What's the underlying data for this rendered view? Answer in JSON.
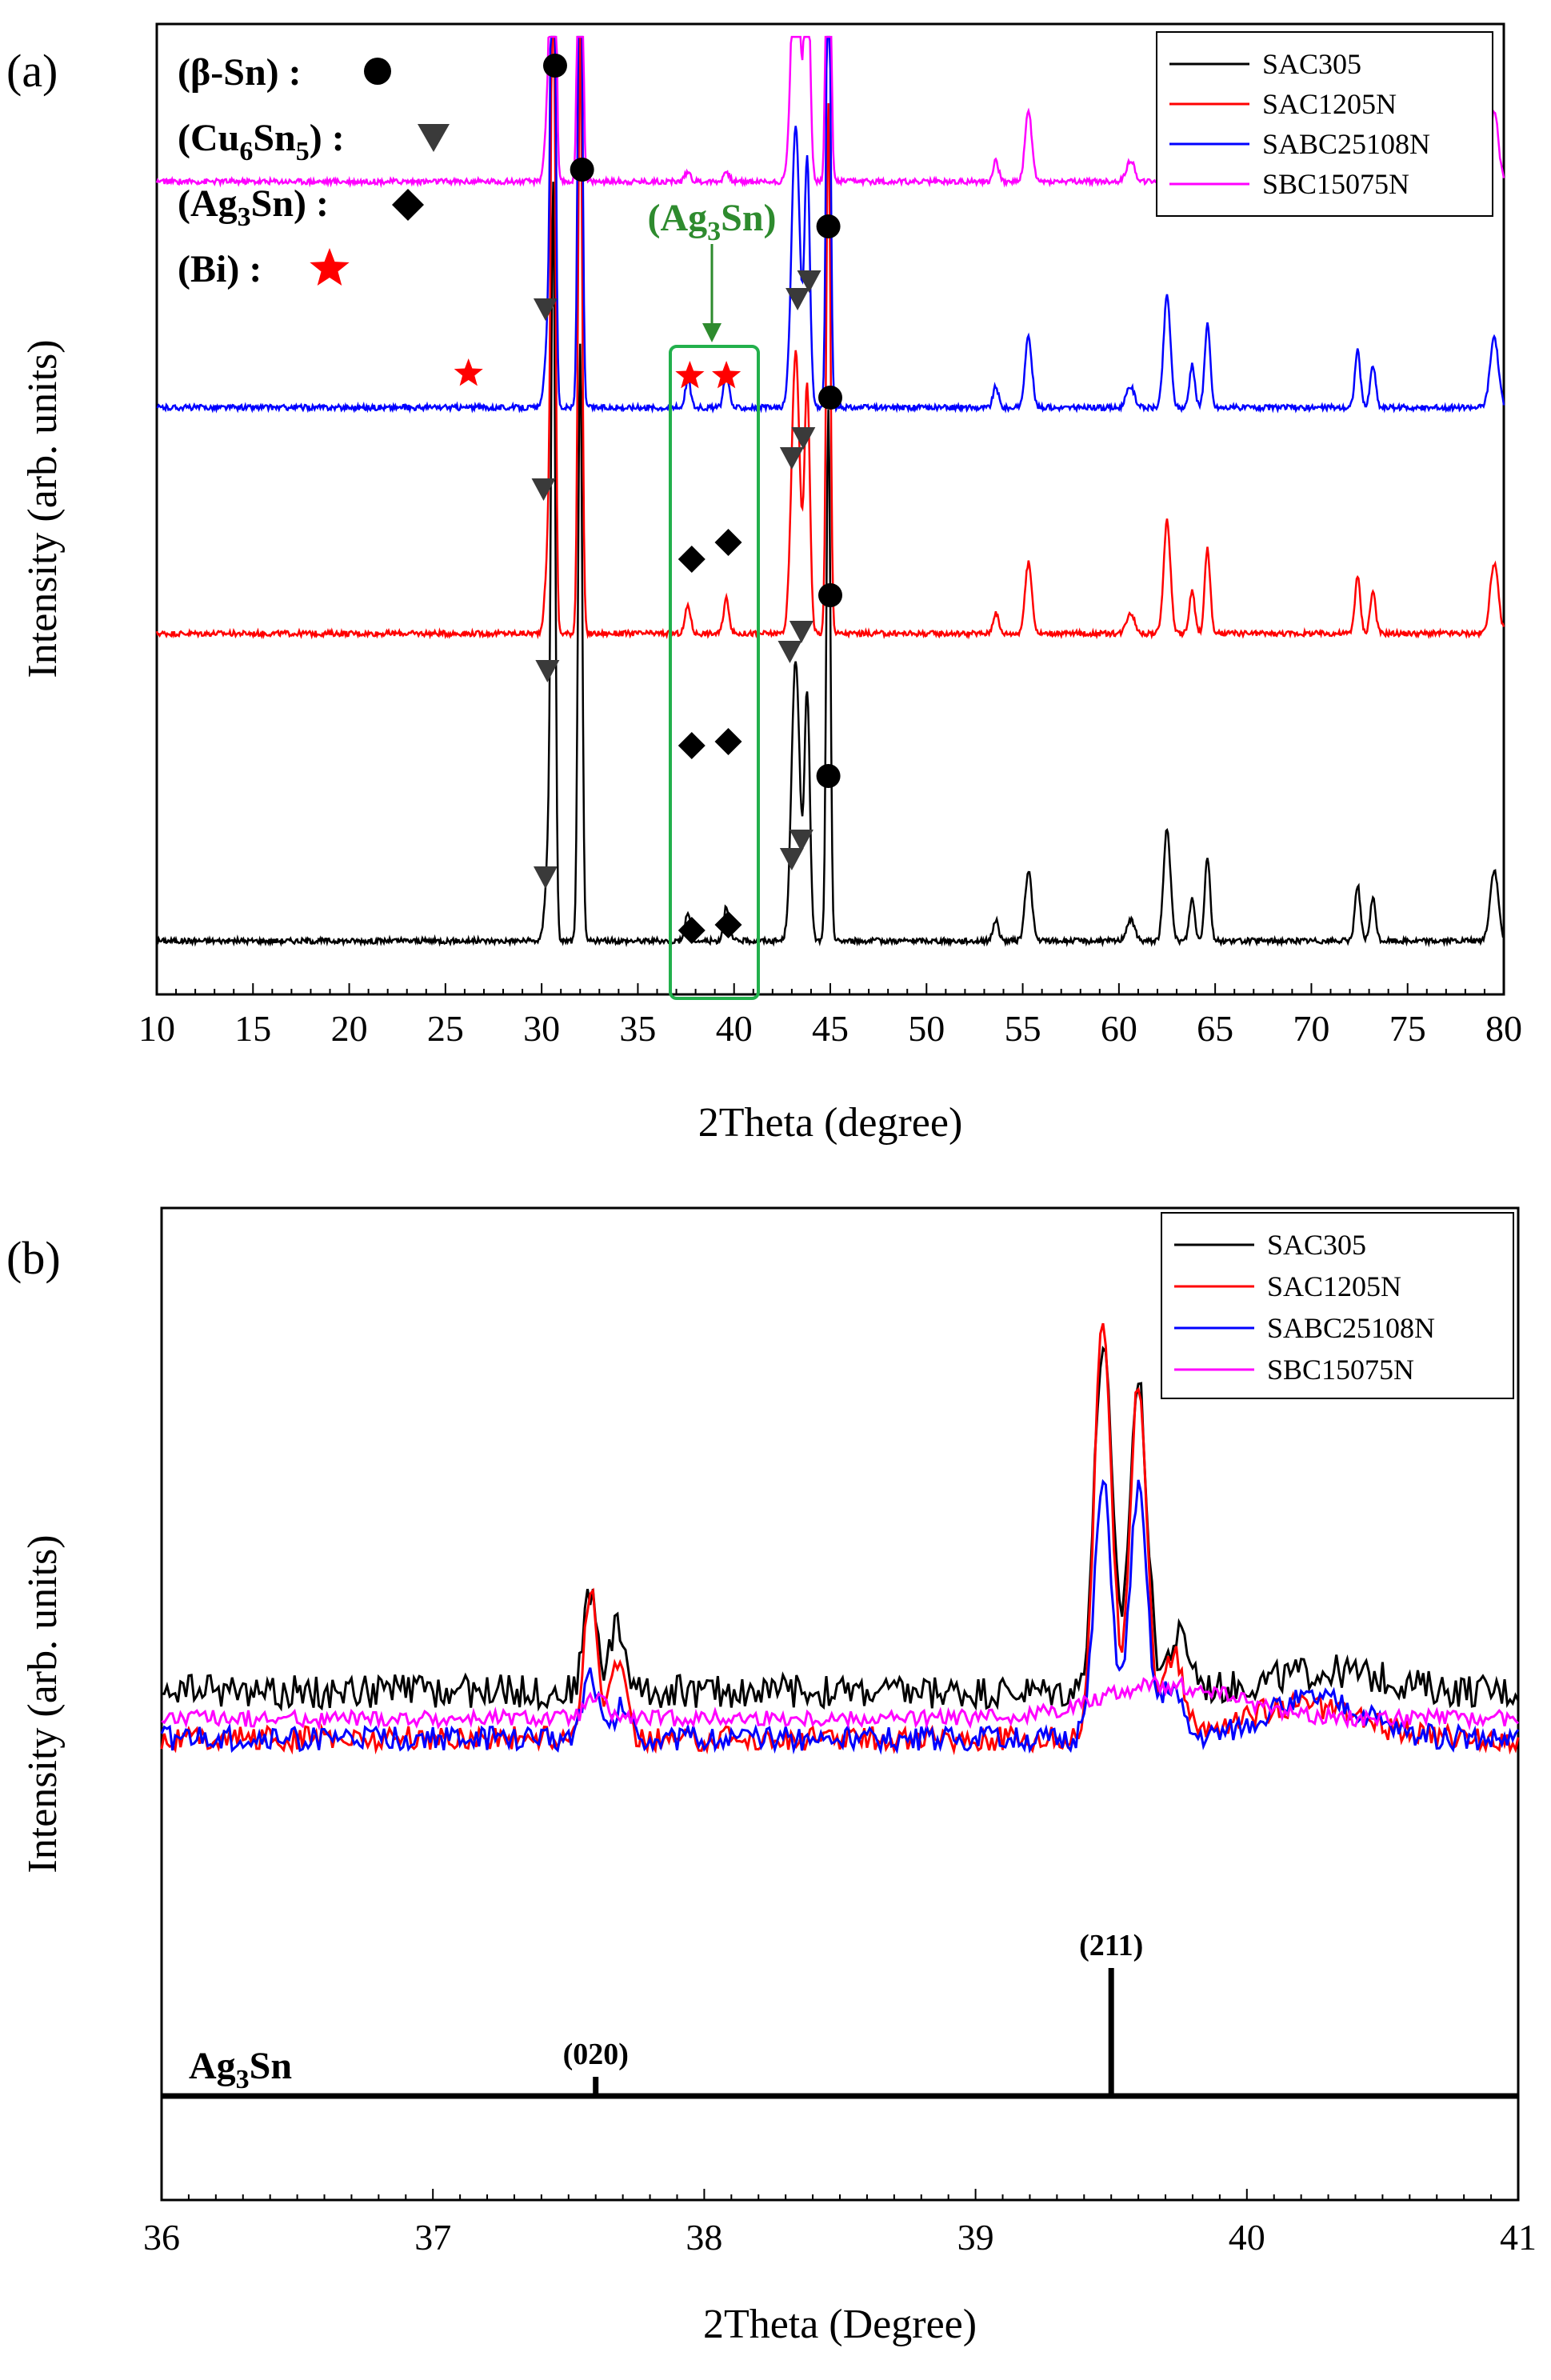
{
  "chart_data": [
    {
      "panel": "(a)",
      "type": "line",
      "title": "",
      "xlabel": "2Theta (degree)",
      "ylabel": "Intensity (arb. units)",
      "xlim": [
        10,
        80
      ],
      "xticks": [
        10,
        15,
        20,
        25,
        30,
        35,
        40,
        45,
        50,
        55,
        60,
        65,
        70,
        75,
        80
      ],
      "grid": false,
      "legend_position": "top-right",
      "peaks": [
        {
          "x": 30.4,
          "h": 0.15,
          "w": 0.25
        },
        {
          "x": 30.6,
          "h": 1.0,
          "w": 0.15
        },
        {
          "x": 32.0,
          "h": 0.85,
          "w": 0.15
        },
        {
          "x": 37.6,
          "h": 0.04,
          "w": 0.2
        },
        {
          "x": 39.6,
          "h": 0.05,
          "w": 0.2
        },
        {
          "x": 43.2,
          "h": 0.4,
          "w": 0.3
        },
        {
          "x": 43.8,
          "h": 0.35,
          "w": 0.2
        },
        {
          "x": 44.9,
          "h": 0.75,
          "w": 0.15
        },
        {
          "x": 53.6,
          "h": 0.03,
          "w": 0.2
        },
        {
          "x": 55.3,
          "h": 0.1,
          "w": 0.25
        },
        {
          "x": 60.6,
          "h": 0.03,
          "w": 0.3
        },
        {
          "x": 62.5,
          "h": 0.16,
          "w": 0.25
        },
        {
          "x": 63.8,
          "h": 0.06,
          "w": 0.2
        },
        {
          "x": 64.6,
          "h": 0.12,
          "w": 0.2
        },
        {
          "x": 72.4,
          "h": 0.08,
          "w": 0.2
        },
        {
          "x": 73.2,
          "h": 0.06,
          "w": 0.2
        },
        {
          "x": 79.5,
          "h": 0.1,
          "w": 0.3
        }
      ],
      "series": [
        {
          "name": "SAC305",
          "color": "#000000",
          "baseline": 0.03
        },
        {
          "name": "SAC1205N",
          "color": "#ff0000",
          "baseline": 0.37
        },
        {
          "name": "SABC25108N",
          "color": "#0000ff",
          "baseline": 0.62
        },
        {
          "name": "SBC15075N",
          "color": "#ff00ff",
          "baseline": 0.87
        }
      ],
      "phase_legend": [
        {
          "label": "(β-Sn) :",
          "marker": "circle",
          "color": "#000000"
        },
        {
          "label": "(Cu",
          "sub": "6",
          "label2": "Sn",
          "sub2": "5",
          "label3": ") :",
          "marker": "triangle-down",
          "color": "#3a3a3a"
        },
        {
          "label": "(Ag",
          "sub": "3",
          "label2": "Sn) :",
          "marker": "diamond",
          "color": "#000000"
        },
        {
          "label": "(Bi) :",
          "marker": "star",
          "color": "#ff0000"
        }
      ],
      "annotation": {
        "text_a": "(Ag",
        "sub": "3",
        "text_b": "Sn)",
        "color": "#2e8b2e",
        "x_range": [
          37,
          39.5
        ]
      }
    },
    {
      "panel": "(b)",
      "type": "line",
      "title": "",
      "xlabel": "2Theta (Degree)",
      "ylabel": "Intensity (arb. units)",
      "xlim": [
        36,
        41
      ],
      "xticks": [
        36,
        37,
        38,
        39,
        40,
        41
      ],
      "grid": false,
      "legend_position": "top-right",
      "series": [
        {
          "name": "SAC305",
          "color": "#000000",
          "base": 0.34,
          "noise": 0.025,
          "peaks": [
            {
              "x": 37.58,
              "h": 0.15,
              "w": 0.035
            },
            {
              "x": 37.68,
              "h": 0.1,
              "w": 0.04
            },
            {
              "x": 39.47,
              "h": 0.52,
              "w": 0.045
            },
            {
              "x": 39.6,
              "h": 0.46,
              "w": 0.045
            },
            {
              "x": 39.75,
              "h": 0.08,
              "w": 0.06
            },
            {
              "x": 40.3,
              "h": 0.03,
              "w": 0.3
            }
          ]
        },
        {
          "name": "SAC1205N",
          "color": "#ff0000",
          "base": 0.27,
          "noise": 0.018,
          "peaks": [
            {
              "x": 37.58,
              "h": 0.22,
              "w": 0.035
            },
            {
              "x": 37.68,
              "h": 0.12,
              "w": 0.04
            },
            {
              "x": 39.47,
              "h": 0.62,
              "w": 0.045
            },
            {
              "x": 39.6,
              "h": 0.53,
              "w": 0.045
            },
            {
              "x": 39.73,
              "h": 0.12,
              "w": 0.05
            },
            {
              "x": 40.2,
              "h": 0.05,
              "w": 0.3
            }
          ]
        },
        {
          "name": "SABC25108N",
          "color": "#0000ff",
          "base": 0.27,
          "noise": 0.018,
          "peaks": [
            {
              "x": 37.58,
              "h": 0.1,
              "w": 0.04
            },
            {
              "x": 37.7,
              "h": 0.05,
              "w": 0.04
            },
            {
              "x": 39.47,
              "h": 0.38,
              "w": 0.045
            },
            {
              "x": 39.6,
              "h": 0.37,
              "w": 0.045
            },
            {
              "x": 39.72,
              "h": 0.08,
              "w": 0.05
            },
            {
              "x": 40.25,
              "h": 0.06,
              "w": 0.25
            }
          ]
        },
        {
          "name": "SBC15075N",
          "color": "#ff00ff",
          "base": 0.3,
          "noise": 0.012,
          "peaks": [
            {
              "x": 37.6,
              "h": 0.03,
              "w": 0.05
            },
            {
              "x": 39.7,
              "h": 0.05,
              "w": 0.35
            }
          ]
        }
      ],
      "reference": {
        "phase": "Ag",
        "phase_sub": "3",
        "phase_rest": "Sn",
        "lines": [
          {
            "x": 37.6,
            "label": "(020)",
            "rel": 0.15
          },
          {
            "x": 39.5,
            "label": "(211)",
            "rel": 1.0
          }
        ]
      }
    }
  ]
}
